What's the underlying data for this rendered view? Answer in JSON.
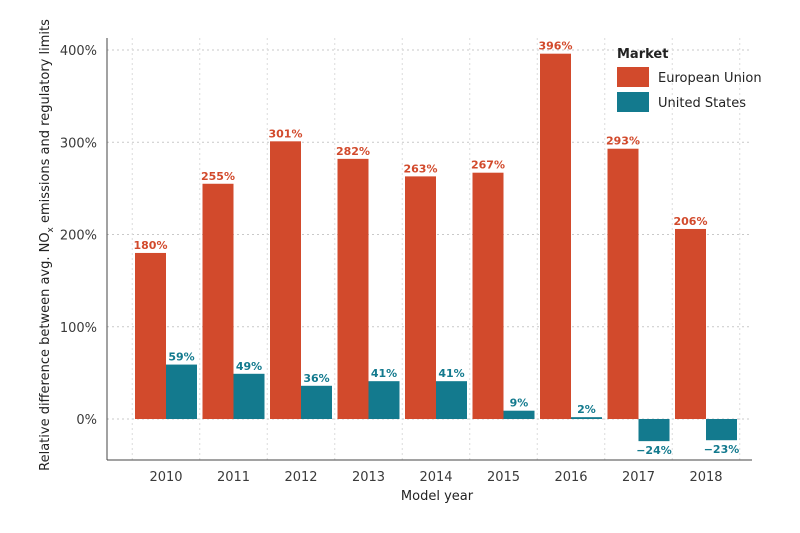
{
  "chart_data": {
    "type": "bar",
    "xlabel": "Model year",
    "ylabel": "Relative difference between avg. NO",
    "ylabel_sub": "x",
    "ylabel_tail": " emissions and regulatory limits",
    "ylim": [
      -45,
      400
    ],
    "yticks": [
      0,
      100,
      200,
      300,
      400
    ],
    "ytick_labels": [
      "0%",
      "100%",
      "200%",
      "300%",
      "400%"
    ],
    "grid": true,
    "legend_title": "Market",
    "legend_position": "top-right",
    "categories": [
      "2010",
      "2011",
      "2012",
      "2013",
      "2014",
      "2015",
      "2016",
      "2017",
      "2018"
    ],
    "series": [
      {
        "name": "European Union",
        "color": "#d24a2c",
        "values": [
          180,
          255,
          301,
          282,
          263,
          267,
          396,
          293,
          206
        ],
        "labels": [
          "180%",
          "255%",
          "301%",
          "282%",
          "263%",
          "267%",
          "396%",
          "293%",
          "206%"
        ]
      },
      {
        "name": "United States",
        "color": "#137a8e",
        "values": [
          59,
          49,
          36,
          41,
          41,
          9,
          2,
          -24,
          -23
        ],
        "labels": [
          "59%",
          "49%",
          "36%",
          "41%",
          "41%",
          "9%",
          "2%",
          "−24%",
          "−23%"
        ]
      }
    ]
  }
}
